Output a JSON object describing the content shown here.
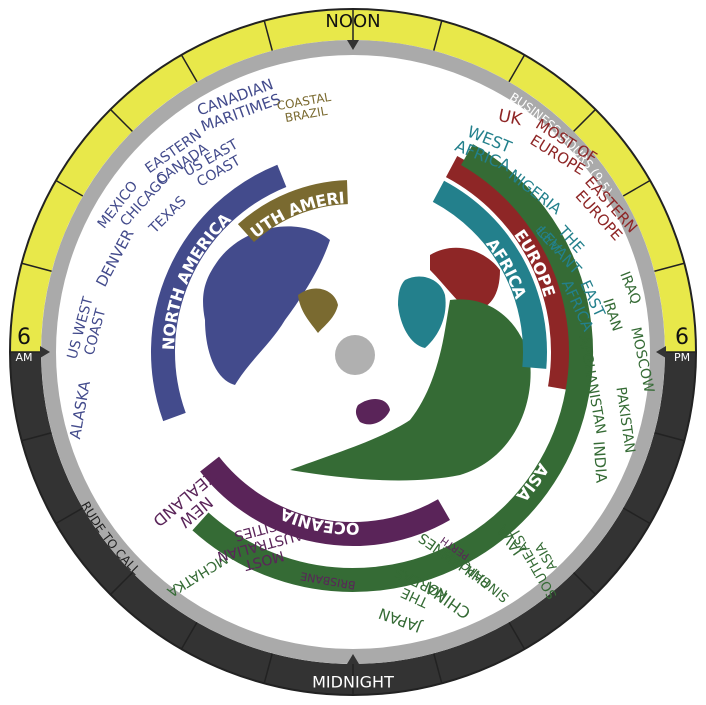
{
  "clock": {
    "noon": "NOON",
    "midnight": "MIDNIGHT",
    "left": {
      "hour": "6",
      "period": "AM"
    },
    "right": {
      "hour": "6",
      "period": "PM"
    },
    "business_hours": "BUSINESS HOURS (9-5)",
    "rude_to_call": "RUDE TO CALL"
  },
  "regions": [
    {
      "name": "NORTH AMERICA",
      "color": "#434b8c",
      "places": [
        [
          "ALASKA"
        ],
        [
          "US WEST",
          "COAST"
        ],
        [
          "DENVER"
        ],
        [
          "MEXICO"
        ],
        [
          "CHICAGO"
        ],
        [
          "TEXAS"
        ],
        [
          "EASTERN",
          "CANADA"
        ],
        [
          "US EAST",
          "COAST"
        ],
        [
          "CANADIAN",
          "MARITIMES"
        ]
      ]
    },
    {
      "name": "SOUTH AMERICA",
      "color": "#7a6a30",
      "places": [
        [
          "COASTAL",
          "BRAZIL"
        ]
      ]
    },
    {
      "name": "EUROPE",
      "color": "#8e2626",
      "places": [
        [
          "UK"
        ],
        [
          "MOST OF",
          "EUROPE"
        ],
        [
          "EASTERN",
          "EUROPE"
        ]
      ]
    },
    {
      "name": "AFRICA",
      "color": "#23808c",
      "places": [
        [
          "WEST",
          "AFRICA"
        ],
        [
          "NIGERIA"
        ],
        [
          "THE",
          "LEVANT"
        ],
        [
          "EGYPT"
        ],
        [
          "EAST",
          "AFRICA"
        ]
      ]
    },
    {
      "name": "ASIA",
      "color": "#356b35",
      "places": [
        [
          "IRAQ"
        ],
        [
          "IRAN"
        ],
        [
          "MOSCOW"
        ],
        [
          "AFGHANISTAN"
        ],
        [
          "PAKISTAN"
        ],
        [
          "INDIA"
        ],
        [
          "SOUTHEAST",
          "ASIA"
        ],
        [
          "JAVA"
        ],
        [
          "SINGAPORE"
        ],
        [
          "PHILIPPINES"
        ],
        [
          "CHINA"
        ],
        [
          "THE",
          "KOREAS"
        ],
        [
          "JAPAN"
        ],
        [
          "KAMCHATKA"
        ]
      ]
    },
    {
      "name": "OCEANIA",
      "color": "#5a2459",
      "places": [
        [
          "PERTH"
        ],
        [
          "BRISBANE"
        ],
        [
          "MOST",
          "AUSTRALIAN",
          "CITIES"
        ],
        [
          "NEW",
          "ZEALAND"
        ]
      ]
    }
  ]
}
